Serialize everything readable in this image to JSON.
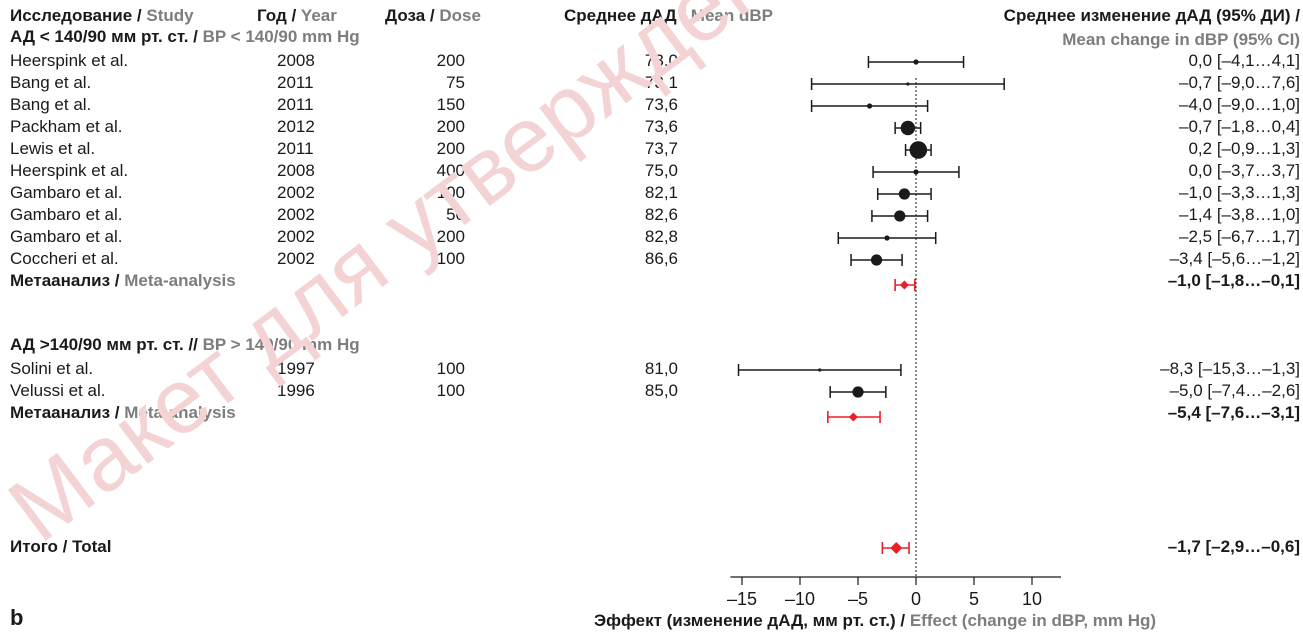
{
  "headers": {
    "study_ru": "Исследование",
    "study_en": "Study",
    "year_ru": "Год",
    "year_en": "Year",
    "dose_ru": "Доза",
    "dose_en": "Dose",
    "mean_ru": "Среднее дАД",
    "mean_en": "Mean dBP",
    "change_ru": "Среднее изменение дАД (95% ДИ)",
    "change_en": "Mean change in dBP (95% CI)"
  },
  "groups": [
    {
      "title_ru": "АД < 140/90 мм рт. ст.",
      "sep": "/",
      "title_en": "BP < 140/90 mm Hg",
      "rows": [
        {
          "study": "Heerspink et al.",
          "year": "2008",
          "dose": "200",
          "mean": "73,0",
          "ci_text": "0,0 [–4,1…4,1]"
        },
        {
          "study": "Bang et al.",
          "year": "2011",
          "dose": "75",
          "mean": "73,1",
          "ci_text": "–0,7 [–9,0…7,6]"
        },
        {
          "study": "Bang et al.",
          "year": "2011",
          "dose": "150",
          "mean": "73,6",
          "ci_text": "–4,0 [–9,0…1,0]"
        },
        {
          "study": "Packham et al.",
          "year": "2012",
          "dose": "200",
          "mean": "73,6",
          "ci_text": "–0,7 [–1,8…0,4]"
        },
        {
          "study": "Lewis et al.",
          "year": "2011",
          "dose": "200",
          "mean": "73,7",
          "ci_text": "0,2 [–0,9…1,3]"
        },
        {
          "study": "Heerspink et al.",
          "year": "2008",
          "dose": "400",
          "mean": "75,0",
          "ci_text": "0,0 [–3,7…3,7]"
        },
        {
          "study": "Gambaro et al.",
          "year": "2002",
          "dose": "100",
          "mean": "82,1",
          "ci_text": "–1,0 [–3,3…1,3]"
        },
        {
          "study": "Gambaro et al.",
          "year": "2002",
          "dose": "50",
          "mean": "82,6",
          "ci_text": "–1,4 [–3,8…1,0]"
        },
        {
          "study": "Gambaro et al.",
          "year": "2002",
          "dose": "200",
          "mean": "82,8",
          "ci_text": "–2,5 [–6,7…1,7]"
        },
        {
          "study": "Coccheri et al.",
          "year": "2002",
          "dose": "100",
          "mean": "86,6",
          "ci_text": "–3,4 [–5,6…–1,2]"
        }
      ],
      "meta_ru": "Метаанализ",
      "meta_en": "Meta-analysis",
      "meta_ci_text": "–1,0 [–1,8…–0,1]"
    },
    {
      "title_ru": "АД >140/90 мм рт. ст.",
      "sep": "//",
      "title_en": "BP > 140/90 mm Hg",
      "rows": [
        {
          "study": "Solini et al.",
          "year": "1997",
          "dose": "100",
          "mean": "81,0",
          "ci_text": "–8,3 [–15,3…–1,3]"
        },
        {
          "study": "Velussi et al.",
          "year": "1996",
          "dose": "100",
          "mean": "85,0",
          "ci_text": "–5,0 [–7,4…–2,6]"
        }
      ],
      "meta_ru": "Метаанализ",
      "meta_en": "Meta-analysis",
      "meta_ci_text": "–5,4 [–7,6…–3,1]"
    }
  ],
  "total": {
    "label": "Итого / Total",
    "ci_text": "–1,7 [–2,9…–0,6]"
  },
  "panel_label": "b",
  "xlabel_ru": "Эффект (изменение дАД, мм рт. ст.)",
  "xlabel_en": "Effect (change in dBP, mm Hg)",
  "watermark": "Макет для утверждения",
  "colors": {
    "study_marker": "#1a1a1a",
    "meta_marker": "#e8202a",
    "header_gray": "#7d7d7d",
    "watermark": "#f3d3d3"
  },
  "chart_data": {
    "type": "forest",
    "x_ticks": [
      -15,
      -10,
      -5,
      0,
      5,
      10
    ],
    "x_tick_labels": [
      "–15",
      "–10",
      "–5",
      "0",
      "5",
      "10"
    ],
    "xlim": [
      -16,
      12.5
    ],
    "reference_line": 0,
    "points": [
      {
        "label": "Heerspink et al. 2008 200",
        "est": 0.0,
        "lo": -4.1,
        "hi": 4.1,
        "weight": "small",
        "kind": "study"
      },
      {
        "label": "Bang et al. 2011 75",
        "est": -0.7,
        "lo": -9.0,
        "hi": 7.6,
        "weight": "tiny",
        "kind": "study"
      },
      {
        "label": "Bang et al. 2011 150",
        "est": -4.0,
        "lo": -9.0,
        "hi": 1.0,
        "weight": "small",
        "kind": "study"
      },
      {
        "label": "Packham et al. 2012 200",
        "est": -0.7,
        "lo": -1.8,
        "hi": 0.4,
        "weight": "large",
        "kind": "study"
      },
      {
        "label": "Lewis et al. 2011 200",
        "est": 0.2,
        "lo": -0.9,
        "hi": 1.3,
        "weight": "xlarge",
        "kind": "study"
      },
      {
        "label": "Heerspink et al. 2008 400",
        "est": 0.0,
        "lo": -3.7,
        "hi": 3.7,
        "weight": "small",
        "kind": "study"
      },
      {
        "label": "Gambaro et al. 2002 100",
        "est": -1.0,
        "lo": -3.3,
        "hi": 1.3,
        "weight": "medium",
        "kind": "study"
      },
      {
        "label": "Gambaro et al. 2002 50",
        "est": -1.4,
        "lo": -3.8,
        "hi": 1.0,
        "weight": "medium",
        "kind": "study"
      },
      {
        "label": "Gambaro et al. 2002 200",
        "est": -2.5,
        "lo": -6.7,
        "hi": 1.7,
        "weight": "small",
        "kind": "study"
      },
      {
        "label": "Coccheri et al. 2002 100",
        "est": -3.4,
        "lo": -5.6,
        "hi": -1.2,
        "weight": "medium",
        "kind": "study"
      },
      {
        "label": "Meta-analysis (BP < 140/90)",
        "est": -1.0,
        "lo": -1.8,
        "hi": -0.1,
        "weight": "diamond",
        "kind": "meta"
      },
      {
        "label": "Solini et al. 1997 100",
        "est": -8.3,
        "lo": -15.3,
        "hi": -1.3,
        "weight": "tiny",
        "kind": "study"
      },
      {
        "label": "Velussi et al. 1996 100",
        "est": -5.0,
        "lo": -7.4,
        "hi": -2.6,
        "weight": "medium",
        "kind": "study"
      },
      {
        "label": "Meta-analysis (BP > 140/90)",
        "est": -5.4,
        "lo": -7.6,
        "hi": -3.1,
        "weight": "diamond",
        "kind": "meta"
      },
      {
        "label": "Total",
        "est": -1.7,
        "lo": -2.9,
        "hi": -0.6,
        "weight": "diamond",
        "kind": "total"
      }
    ]
  }
}
